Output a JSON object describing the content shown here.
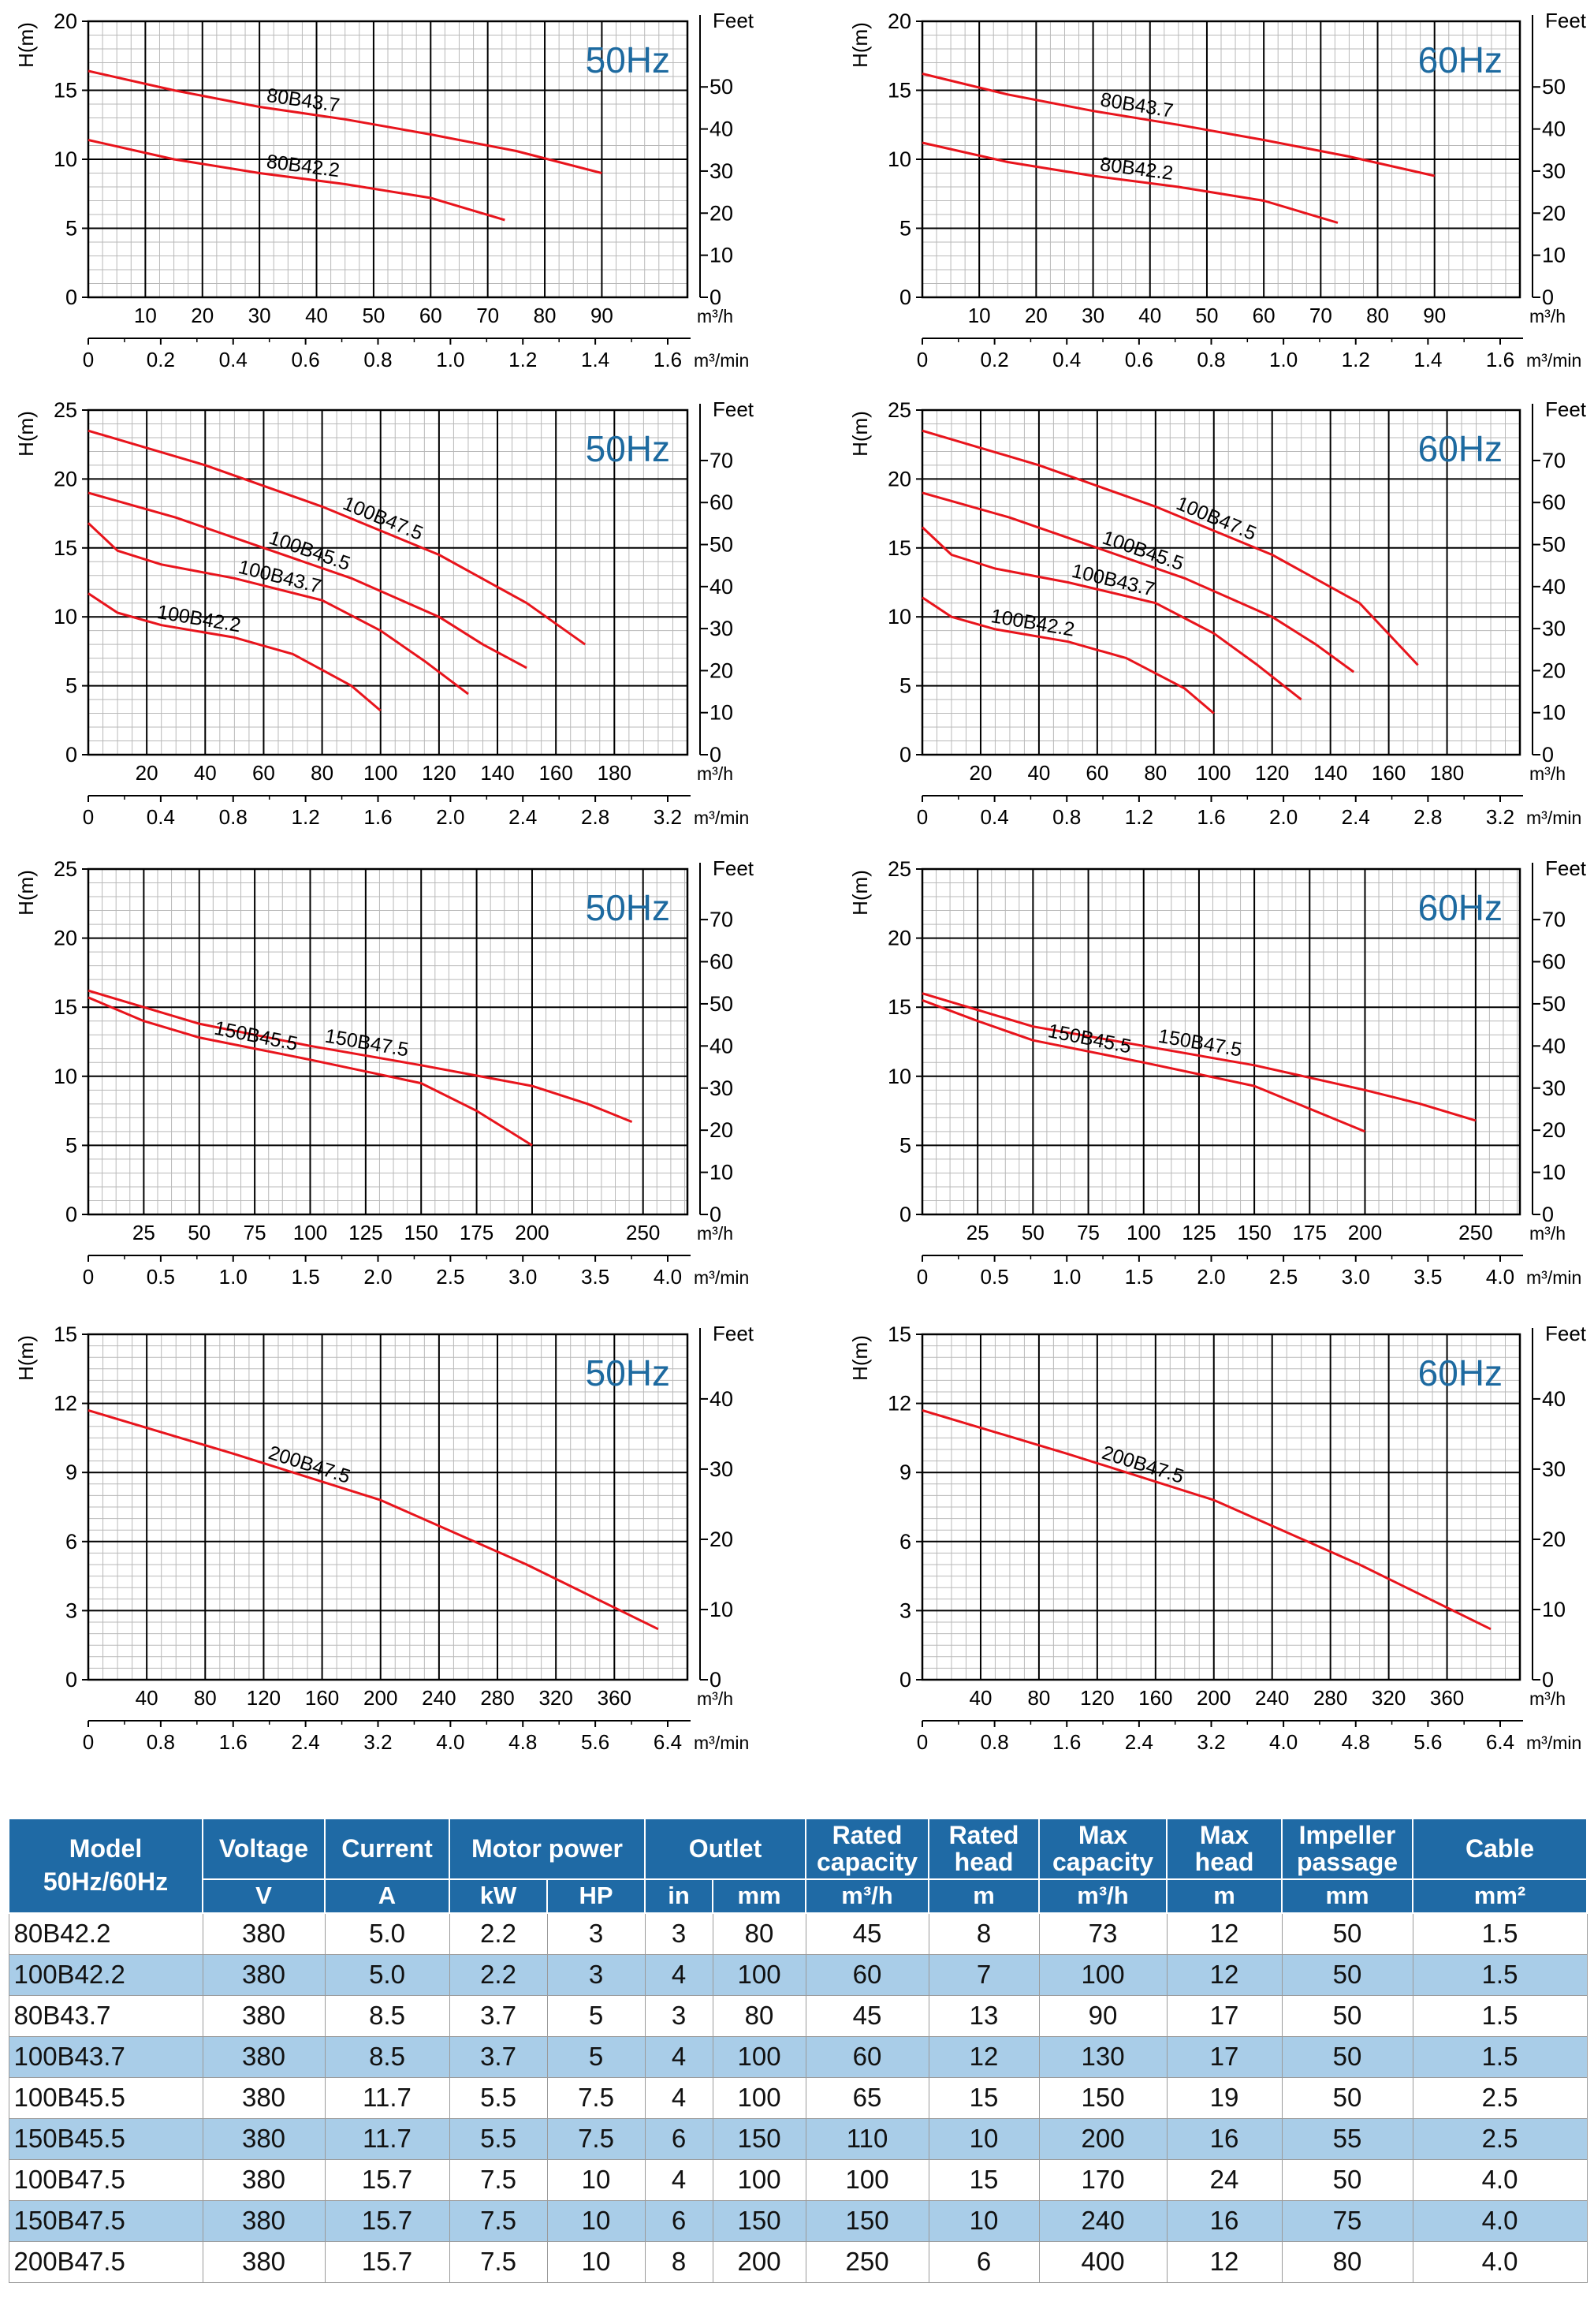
{
  "colors": {
    "curve": "#e8141c",
    "freq_label": "#1d6aa0",
    "header_bg": "#1f6aa5",
    "row_alt": "#a9cde8",
    "grid_minor": "#b9b9b9",
    "grid_major": "#000000"
  },
  "chart_data": [
    {
      "type": "line",
      "frequency": "50Hz",
      "ylabel": "H(m)",
      "y2label": "Feet",
      "x_unit": "m³/h",
      "x2_unit": "m³/min",
      "ylim": [
        0,
        20
      ],
      "xlim": [
        0,
        105
      ],
      "y_ticks": [
        0,
        5,
        10,
        15,
        20
      ],
      "y2_ticks": [
        0,
        10,
        20,
        30,
        40,
        50
      ],
      "x_ticks": [
        10,
        20,
        30,
        40,
        50,
        60,
        70,
        80,
        90
      ],
      "x2_ticks": [
        "0",
        "0.2",
        "0.4",
        "0.6",
        "0.8",
        "1.0",
        "1.2",
        "1.4",
        "1.6"
      ],
      "series": [
        {
          "name": "80B43.7",
          "x": [
            0,
            15,
            30,
            45,
            60,
            75,
            90
          ],
          "y": [
            16.4,
            15.0,
            13.8,
            12.9,
            11.8,
            10.6,
            9.0
          ]
        },
        {
          "name": "80B42.2",
          "x": [
            0,
            15,
            30,
            45,
            60,
            73
          ],
          "y": [
            11.4,
            10.0,
            9.0,
            8.2,
            7.2,
            5.6
          ]
        }
      ]
    },
    {
      "type": "line",
      "frequency": "60Hz",
      "ylabel": "H(m)",
      "y2label": "Feet",
      "x_unit": "m³/h",
      "x2_unit": "m³/min",
      "ylim": [
        0,
        20
      ],
      "xlim": [
        0,
        105
      ],
      "y_ticks": [
        0,
        5,
        10,
        15,
        20
      ],
      "y2_ticks": [
        0,
        10,
        20,
        30,
        40,
        50
      ],
      "x_ticks": [
        10,
        20,
        30,
        40,
        50,
        60,
        70,
        80,
        90
      ],
      "x2_ticks": [
        "0",
        "0.2",
        "0.4",
        "0.6",
        "0.8",
        "1.0",
        "1.2",
        "1.4",
        "1.6"
      ],
      "series": [
        {
          "name": "80B43.7",
          "x": [
            0,
            15,
            30,
            45,
            60,
            75,
            90
          ],
          "y": [
            16.2,
            14.7,
            13.5,
            12.5,
            11.4,
            10.2,
            8.8
          ]
        },
        {
          "name": "80B42.2",
          "x": [
            0,
            15,
            30,
            45,
            60,
            73
          ],
          "y": [
            11.2,
            9.8,
            8.8,
            8.0,
            7.0,
            5.4
          ]
        }
      ]
    },
    {
      "type": "line",
      "frequency": "50Hz",
      "ylabel": "H(m)",
      "y2label": "Feet",
      "x_unit": "m³/h",
      "x2_unit": "m³/min",
      "ylim": [
        0,
        25
      ],
      "xlim": [
        0,
        205
      ],
      "y_ticks": [
        0,
        5,
        10,
        15,
        20,
        25
      ],
      "y2_ticks": [
        0,
        10,
        20,
        30,
        40,
        50,
        60,
        70
      ],
      "x_ticks": [
        20,
        40,
        60,
        80,
        100,
        120,
        140,
        160,
        180
      ],
      "x2_ticks": [
        "0",
        "0.4",
        "0.8",
        "1.2",
        "1.6",
        "2.0",
        "2.4",
        "2.8",
        "3.2"
      ],
      "series": [
        {
          "name": "100B47.5",
          "x": [
            0,
            40,
            80,
            120,
            150,
            170
          ],
          "y": [
            23.5,
            21.0,
            18.0,
            14.5,
            11.0,
            8.0
          ]
        },
        {
          "name": "100B45.5",
          "x": [
            0,
            30,
            60,
            90,
            120,
            135,
            150
          ],
          "y": [
            19.0,
            17.2,
            15.0,
            12.8,
            10.0,
            8.0,
            6.3
          ]
        },
        {
          "name": "100B43.7",
          "x": [
            0,
            10,
            25,
            50,
            80,
            100,
            115,
            130
          ],
          "y": [
            16.8,
            14.8,
            13.8,
            12.8,
            11.2,
            9.0,
            6.8,
            4.4
          ]
        },
        {
          "name": "100B42.2",
          "x": [
            0,
            10,
            25,
            50,
            70,
            90,
            100
          ],
          "y": [
            11.7,
            10.3,
            9.4,
            8.5,
            7.3,
            5.0,
            3.2
          ]
        }
      ]
    },
    {
      "type": "line",
      "frequency": "60Hz",
      "ylabel": "H(m)",
      "y2label": "Feet",
      "x_unit": "m³/h",
      "x2_unit": "m³/min",
      "ylim": [
        0,
        25
      ],
      "xlim": [
        0,
        205
      ],
      "y_ticks": [
        0,
        5,
        10,
        15,
        20,
        25
      ],
      "y2_ticks": [
        0,
        10,
        20,
        30,
        40,
        50,
        60,
        70
      ],
      "x_ticks": [
        20,
        40,
        60,
        80,
        100,
        120,
        140,
        160,
        180
      ],
      "x2_ticks": [
        "0",
        "0.4",
        "0.8",
        "1.2",
        "1.6",
        "2.0",
        "2.4",
        "2.8",
        "3.2"
      ],
      "series": [
        {
          "name": "100B47.5",
          "x": [
            0,
            40,
            80,
            120,
            150,
            170
          ],
          "y": [
            23.5,
            21.0,
            18.0,
            14.5,
            11.0,
            6.5
          ]
        },
        {
          "name": "100B45.5",
          "x": [
            0,
            30,
            60,
            90,
            120,
            135,
            148
          ],
          "y": [
            19.0,
            17.2,
            15.0,
            12.8,
            10.0,
            8.0,
            6.0
          ]
        },
        {
          "name": "100B43.7",
          "x": [
            0,
            10,
            25,
            50,
            80,
            100,
            115,
            130
          ],
          "y": [
            16.5,
            14.5,
            13.5,
            12.5,
            11.0,
            8.8,
            6.5,
            4.0
          ]
        },
        {
          "name": "100B42.2",
          "x": [
            0,
            10,
            25,
            50,
            70,
            90,
            100
          ],
          "y": [
            11.4,
            10.0,
            9.1,
            8.2,
            7.0,
            4.8,
            3.0
          ]
        }
      ]
    },
    {
      "type": "line",
      "frequency": "50Hz",
      "ylabel": "H(m)",
      "y2label": "Feet",
      "x_unit": "m³/h",
      "x2_unit": "m³/min",
      "ylim": [
        0,
        25
      ],
      "xlim": [
        0,
        270
      ],
      "y_ticks": [
        0,
        5,
        10,
        15,
        20,
        25
      ],
      "y2_ticks": [
        0,
        10,
        20,
        30,
        40,
        50,
        60,
        70
      ],
      "x_ticks": [
        25,
        50,
        75,
        100,
        125,
        150,
        175,
        200,
        250
      ],
      "x2_ticks": [
        "0",
        "0.5",
        "1.0",
        "1.5",
        "2.0",
        "2.5",
        "3.0",
        "3.5",
        "4.0"
      ],
      "series": [
        {
          "name": "150B47.5",
          "x": [
            0,
            25,
            50,
            100,
            150,
            200,
            225,
            245
          ],
          "y": [
            16.2,
            15.0,
            13.8,
            12.2,
            10.8,
            9.3,
            8.0,
            6.7
          ]
        },
        {
          "name": "150B45.5",
          "x": [
            0,
            25,
            50,
            100,
            150,
            175,
            200
          ],
          "y": [
            15.7,
            14.0,
            12.8,
            11.2,
            9.5,
            7.5,
            5.0
          ]
        }
      ]
    },
    {
      "type": "line",
      "frequency": "60Hz",
      "ylabel": "H(m)",
      "y2label": "Feet",
      "x_unit": "m³/h",
      "x2_unit": "m³/min",
      "ylim": [
        0,
        25
      ],
      "xlim": [
        0,
        270
      ],
      "y_ticks": [
        0,
        5,
        10,
        15,
        20,
        25
      ],
      "y2_ticks": [
        0,
        10,
        20,
        30,
        40,
        50,
        60,
        70
      ],
      "x_ticks": [
        25,
        50,
        75,
        100,
        125,
        150,
        175,
        200,
        250
      ],
      "x2_ticks": [
        "0",
        "0.5",
        "1.0",
        "1.5",
        "2.0",
        "2.5",
        "3.0",
        "3.5",
        "4.0"
      ],
      "series": [
        {
          "name": "150B47.5",
          "x": [
            0,
            25,
            50,
            100,
            150,
            200,
            225,
            250
          ],
          "y": [
            16.0,
            14.8,
            13.6,
            12.2,
            10.8,
            9.0,
            8.0,
            6.8
          ]
        },
        {
          "name": "150B45.5",
          "x": [
            0,
            25,
            50,
            100,
            150,
            200
          ],
          "y": [
            15.5,
            14.0,
            12.6,
            11.0,
            9.3,
            6.0
          ]
        }
      ]
    },
    {
      "type": "line",
      "frequency": "50Hz",
      "ylabel": "H(m)",
      "y2label": "Feet",
      "x_unit": "m³/h",
      "x2_unit": "m³/min",
      "ylim": [
        0,
        15
      ],
      "xlim": [
        0,
        410
      ],
      "y_ticks": [
        0,
        3,
        6,
        9,
        12,
        15
      ],
      "y2_ticks": [
        0,
        10,
        20,
        30,
        40
      ],
      "x_ticks": [
        40,
        80,
        120,
        160,
        200,
        240,
        280,
        320,
        360
      ],
      "x2_ticks": [
        "0",
        "0.8",
        "1.6",
        "2.4",
        "3.2",
        "4.0",
        "4.8",
        "5.6",
        "6.4"
      ],
      "series": [
        {
          "name": "200B47.5",
          "x": [
            0,
            100,
            200,
            300,
            390
          ],
          "y": [
            11.7,
            9.8,
            7.8,
            5.0,
            2.2
          ]
        }
      ]
    },
    {
      "type": "line",
      "frequency": "60Hz",
      "ylabel": "H(m)",
      "y2label": "Feet",
      "x_unit": "m³/h",
      "x2_unit": "m³/min",
      "ylim": [
        0,
        15
      ],
      "xlim": [
        0,
        410
      ],
      "y_ticks": [
        0,
        3,
        6,
        9,
        12,
        15
      ],
      "y2_ticks": [
        0,
        10,
        20,
        30,
        40
      ],
      "x_ticks": [
        40,
        80,
        120,
        160,
        200,
        240,
        280,
        320,
        360
      ],
      "x2_ticks": [
        "0",
        "0.8",
        "1.6",
        "2.4",
        "3.2",
        "4.0",
        "4.8",
        "5.6",
        "6.4"
      ],
      "series": [
        {
          "name": "200B47.5",
          "x": [
            0,
            100,
            200,
            300,
            390
          ],
          "y": [
            11.7,
            9.8,
            7.8,
            5.0,
            2.2
          ]
        }
      ]
    }
  ],
  "table": {
    "headers": {
      "model_line1": "Model",
      "model_line2": "50Hz/60Hz",
      "voltage": "Voltage",
      "current": "Current",
      "motor_power": "Motor power",
      "outlet": "Outlet",
      "rated_capacity": "Rated capacity",
      "rated_head": "Rated head",
      "max_capacity": "Max capacity",
      "max_head": "Max head",
      "impeller_passage": "Impeller passage",
      "cable": "Cable"
    },
    "units": [
      "V",
      "A",
      "kW",
      "HP",
      "in",
      "mm",
      "m³/h",
      "m",
      "m³/h",
      "m",
      "mm",
      "mm²"
    ],
    "rows": [
      [
        "80B42.2",
        "380",
        "5.0",
        "2.2",
        "3",
        "3",
        "80",
        "45",
        "8",
        "73",
        "12",
        "50",
        "1.5"
      ],
      [
        "100B42.2",
        "380",
        "5.0",
        "2.2",
        "3",
        "4",
        "100",
        "60",
        "7",
        "100",
        "12",
        "50",
        "1.5"
      ],
      [
        "80B43.7",
        "380",
        "8.5",
        "3.7",
        "5",
        "3",
        "80",
        "45",
        "13",
        "90",
        "17",
        "50",
        "1.5"
      ],
      [
        "100B43.7",
        "380",
        "8.5",
        "3.7",
        "5",
        "4",
        "100",
        "60",
        "12",
        "130",
        "17",
        "50",
        "1.5"
      ],
      [
        "100B45.5",
        "380",
        "11.7",
        "5.5",
        "7.5",
        "4",
        "100",
        "65",
        "15",
        "150",
        "19",
        "50",
        "2.5"
      ],
      [
        "150B45.5",
        "380",
        "11.7",
        "5.5",
        "7.5",
        "6",
        "150",
        "110",
        "10",
        "200",
        "16",
        "55",
        "2.5"
      ],
      [
        "100B47.5",
        "380",
        "15.7",
        "7.5",
        "10",
        "4",
        "100",
        "100",
        "15",
        "170",
        "24",
        "50",
        "4.0"
      ],
      [
        "150B47.5",
        "380",
        "15.7",
        "7.5",
        "10",
        "6",
        "150",
        "150",
        "10",
        "240",
        "16",
        "75",
        "4.0"
      ],
      [
        "200B47.5",
        "380",
        "15.7",
        "7.5",
        "10",
        "8",
        "200",
        "250",
        "6",
        "400",
        "12",
        "80",
        "4.0"
      ]
    ]
  }
}
